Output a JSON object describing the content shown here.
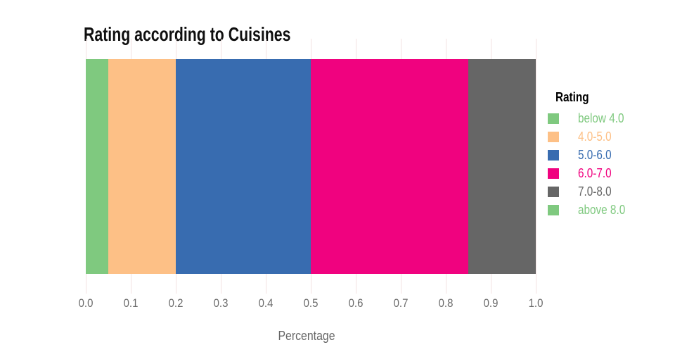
{
  "title": "Rating according to Cuisines",
  "chart_data": {
    "type": "bar",
    "orientation": "horizontal-stacked",
    "title": "Rating according to Cuisines",
    "xlabel": "Percentage",
    "ylabel": "",
    "xlim": [
      0.0,
      1.0
    ],
    "x_ticks": [
      "0.0",
      "0.1",
      "0.2",
      "0.3",
      "0.4",
      "0.5",
      "0.6",
      "0.7",
      "0.8",
      "0.9",
      "1.0"
    ],
    "grid": true,
    "gridline_color": "#f2e1e1",
    "legend_position": "right",
    "legend_title": "Rating",
    "series": [
      {
        "name": "below 4.0",
        "value": 0.05,
        "color": "#7fc97f"
      },
      {
        "name": "4.0-5.0",
        "value": 0.15,
        "color": "#fdc086"
      },
      {
        "name": "5.0-6.0",
        "value": 0.3,
        "color": "#386cb0"
      },
      {
        "name": "6.0-7.0",
        "value": 0.35,
        "color": "#f0027f"
      },
      {
        "name": "7.0-8.0",
        "value": 0.15,
        "color": "#666666"
      },
      {
        "name": "above 8.0",
        "value": 0.0,
        "color": "#7fc97f"
      }
    ],
    "text_colors": {
      "title": "#0f0f0f",
      "tick_labels": "#6b6b6b",
      "axis_label": "#666666",
      "legend_title": "#000000"
    }
  }
}
